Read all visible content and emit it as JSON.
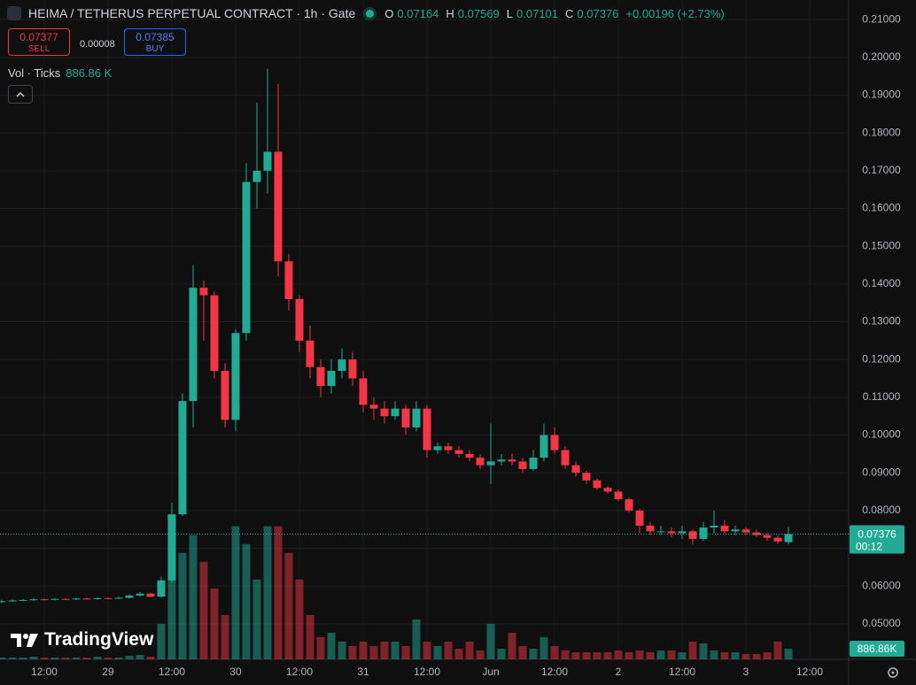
{
  "chart_data": {
    "type": "candlestick",
    "title": "HEIMA / TETHERUS PERPETUAL CONTRACT · 1h · Gate",
    "ohlc_keys": [
      "O",
      "H",
      "L",
      "C"
    ],
    "change": "+0.00196 (+2.73%)",
    "sell": {
      "price": 0.07377,
      "label": "SELL"
    },
    "spread": 8e-05,
    "buy": {
      "price": 0.07385,
      "label": "BUY"
    },
    "volume_title": "Vol · Ticks",
    "volume_legend_label": "886.86 K",
    "volume_axis_label": "886.86K",
    "countdown": "00:12",
    "logo": "TradingView",
    "up_color": "#22ab94",
    "down_color": "#f23645",
    "grid": true,
    "x": [
      -8,
      -6,
      -4,
      -2,
      0,
      2,
      4,
      6,
      8,
      10,
      12,
      14,
      16,
      18,
      20,
      22,
      24,
      26,
      28,
      30,
      32,
      34,
      36,
      38,
      40,
      42,
      44,
      46,
      48,
      50,
      52,
      54,
      56,
      58,
      60,
      62,
      64,
      66,
      68,
      70,
      72,
      74,
      76,
      78,
      80,
      82,
      84,
      86,
      88,
      90,
      92,
      94,
      96,
      98,
      100,
      102,
      104,
      106,
      108,
      110,
      112,
      114,
      116,
      118,
      120,
      122,
      124,
      126,
      128,
      130,
      132,
      134,
      136,
      138,
      140
    ],
    "open": [
      0.0558,
      0.056,
      0.0562,
      0.0563,
      0.0565,
      0.0564,
      0.0566,
      0.0565,
      0.0567,
      0.0566,
      0.0568,
      0.0567,
      0.0569,
      0.0575,
      0.058,
      0.0572,
      0.0615,
      0.079,
      0.109,
      0.139,
      0.137,
      0.117,
      0.104,
      0.127,
      0.167,
      0.17,
      0.175,
      0.146,
      0.136,
      0.125,
      0.118,
      0.113,
      0.117,
      0.12,
      0.115,
      0.108,
      0.107,
      0.105,
      0.107,
      0.102,
      0.107,
      0.096,
      0.097,
      0.096,
      0.095,
      0.094,
      0.092,
      0.093,
      0.0935,
      0.093,
      0.091,
      0.094,
      0.1,
      0.096,
      0.092,
      0.09,
      0.088,
      0.086,
      0.085,
      0.083,
      0.08,
      0.076,
      0.0745,
      0.0745,
      0.074,
      0.0745,
      0.0725,
      0.0755,
      0.076,
      0.0745,
      0.075,
      0.0742,
      0.0735,
      0.0728,
      0.07164
    ],
    "high": [
      0.0564,
      0.0565,
      0.0566,
      0.0568,
      0.0567,
      0.0568,
      0.0568,
      0.0569,
      0.0569,
      0.057,
      0.057,
      0.0572,
      0.0578,
      0.0584,
      0.0582,
      0.0625,
      0.082,
      0.111,
      0.145,
      0.141,
      0.138,
      0.119,
      0.128,
      0.172,
      0.188,
      0.197,
      0.193,
      0.148,
      0.137,
      0.129,
      0.12,
      0.12,
      0.123,
      0.122,
      0.117,
      0.11,
      0.109,
      0.109,
      0.108,
      0.109,
      0.108,
      0.098,
      0.098,
      0.097,
      0.096,
      0.095,
      0.103,
      0.095,
      0.095,
      0.094,
      0.096,
      0.103,
      0.102,
      0.097,
      0.093,
      0.0905,
      0.0885,
      0.0865,
      0.0855,
      0.0835,
      0.0805,
      0.077,
      0.076,
      0.0755,
      0.076,
      0.075,
      0.077,
      0.08,
      0.0775,
      0.076,
      0.0755,
      0.075,
      0.0742,
      0.0735,
      0.07569
    ],
    "low": [
      0.0555,
      0.0558,
      0.056,
      0.0561,
      0.0562,
      0.0562,
      0.0563,
      0.0563,
      0.0564,
      0.0564,
      0.0565,
      0.0565,
      0.0567,
      0.0572,
      0.057,
      0.057,
      0.061,
      0.0785,
      0.102,
      0.125,
      0.115,
      0.102,
      0.101,
      0.125,
      0.16,
      0.164,
      0.142,
      0.133,
      0.122,
      0.115,
      0.11,
      0.111,
      0.115,
      0.113,
      0.106,
      0.104,
      0.103,
      0.104,
      0.1,
      0.101,
      0.094,
      0.095,
      0.095,
      0.094,
      0.093,
      0.091,
      0.087,
      0.092,
      0.092,
      0.09,
      0.0905,
      0.093,
      0.095,
      0.091,
      0.089,
      0.087,
      0.0855,
      0.0845,
      0.0825,
      0.0795,
      0.074,
      0.0735,
      0.0735,
      0.073,
      0.0725,
      0.071,
      0.072,
      0.074,
      0.074,
      0.0735,
      0.0735,
      0.073,
      0.072,
      0.0712,
      0.07101
    ],
    "close": [
      0.056,
      0.0562,
      0.0563,
      0.0565,
      0.0564,
      0.0566,
      0.0565,
      0.0567,
      0.0566,
      0.0568,
      0.0567,
      0.0569,
      0.0575,
      0.058,
      0.0572,
      0.0615,
      0.079,
      0.109,
      0.139,
      0.137,
      0.117,
      0.104,
      0.127,
      0.167,
      0.17,
      0.175,
      0.146,
      0.136,
      0.125,
      0.118,
      0.113,
      0.117,
      0.12,
      0.115,
      0.108,
      0.107,
      0.105,
      0.107,
      0.102,
      0.107,
      0.096,
      0.097,
      0.096,
      0.095,
      0.094,
      0.092,
      0.093,
      0.0935,
      0.093,
      0.091,
      0.094,
      0.1,
      0.096,
      0.092,
      0.09,
      0.088,
      0.086,
      0.085,
      0.083,
      0.08,
      0.076,
      0.0745,
      0.0745,
      0.074,
      0.0745,
      0.0725,
      0.0755,
      0.076,
      0.0745,
      0.075,
      0.0742,
      0.0735,
      0.0728,
      0.0718,
      0.07376
    ],
    "volume": [
      148000,
      148000,
      148000,
      222000,
      148000,
      148000,
      148000,
      148000,
      148000,
      222000,
      148000,
      148000,
      296000,
      370000,
      222000,
      2960000,
      11840000,
      8880000,
      10360000,
      8140000,
      5920000,
      3700000,
      11100000,
      9620000,
      6660000,
      11100000,
      11100000,
      8880000,
      6660000,
      3700000,
      1850000,
      2220000,
      1480000,
      1110000,
      1480000,
      1110000,
      1480000,
      1480000,
      1110000,
      3330000,
      1480000,
      1110000,
      1480000,
      888000,
      1480000,
      740000,
      2960000,
      888000,
      2220000,
      1110000,
      888000,
      1850000,
      1110000,
      740000,
      592000,
      592000,
      592000,
      592000,
      740000,
      592000,
      740000,
      592000,
      740000,
      740000,
      592000,
      1480000,
      1332000,
      740000,
      592000,
      592000,
      444000,
      444000,
      592000,
      1480000,
      886860
    ],
    "xlim": [
      -8.33,
      151.33
    ],
    "xticks": [
      {
        "value": 0,
        "label": "12:00"
      },
      {
        "value": 12,
        "label": "29"
      },
      {
        "value": 24,
        "label": "12:00"
      },
      {
        "value": 36,
        "label": "30"
      },
      {
        "value": 48,
        "label": "12:00"
      },
      {
        "value": 60,
        "label": "31"
      },
      {
        "value": 72,
        "label": "12:00"
      },
      {
        "value": 84,
        "label": "Jun"
      },
      {
        "value": 96,
        "label": "12:00"
      },
      {
        "value": 108,
        "label": "2"
      },
      {
        "value": 120,
        "label": "12:00"
      },
      {
        "value": 132,
        "label": "3"
      },
      {
        "value": 144,
        "label": "12:00"
      }
    ],
    "ylim": [
      0.0406,
      0.2152
    ],
    "yticks": [
      {
        "value": 0.05,
        "label": "0.05000"
      },
      {
        "value": 0.06,
        "label": "0.06000"
      },
      {
        "value": 0.07,
        "label": "0.07000"
      },
      {
        "value": 0.08,
        "label": "0.08000"
      },
      {
        "value": 0.09,
        "label": "0.09000"
      },
      {
        "value": 0.1,
        "label": "0.10000"
      },
      {
        "value": 0.11,
        "label": "0.11000"
      },
      {
        "value": 0.12,
        "label": "0.12000"
      },
      {
        "value": 0.13,
        "label": "0.13000"
      },
      {
        "value": 0.14,
        "label": "0.14000"
      },
      {
        "value": 0.15,
        "label": "0.15000"
      },
      {
        "value": 0.16,
        "label": "0.16000"
      },
      {
        "value": 0.17,
        "label": "0.17000"
      },
      {
        "value": 0.18,
        "label": "0.18000"
      },
      {
        "value": 0.19,
        "label": "0.19000"
      },
      {
        "value": 0.2,
        "label": "0.20000"
      },
      {
        "value": 0.21,
        "label": "0.21000"
      }
    ],
    "y2lim": [
      0,
      55000000
    ]
  }
}
